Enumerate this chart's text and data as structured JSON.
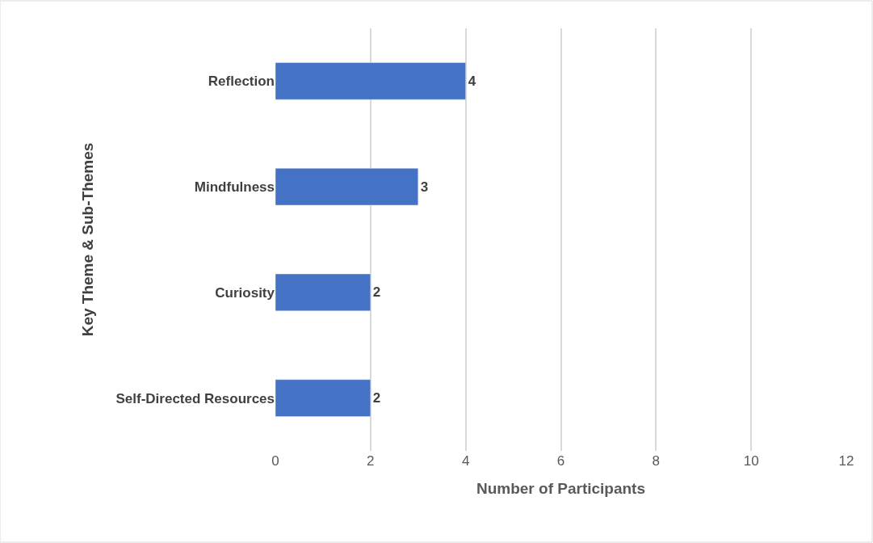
{
  "chart_data": {
    "type": "bar",
    "orientation": "horizontal",
    "categories": [
      "Reflection",
      "Mindfulness",
      "Curiosity",
      "Self-Directed Resources"
    ],
    "values": [
      4,
      3,
      2,
      2
    ],
    "color": "#4472c4",
    "xlim": [
      0,
      12
    ],
    "xticks": [
      0,
      2,
      4,
      6,
      8,
      10,
      12
    ],
    "xlabel": "Number of Participants",
    "ylabel": "Key Theme & Sub-Themes",
    "grid": "x",
    "data_labels": true
  }
}
